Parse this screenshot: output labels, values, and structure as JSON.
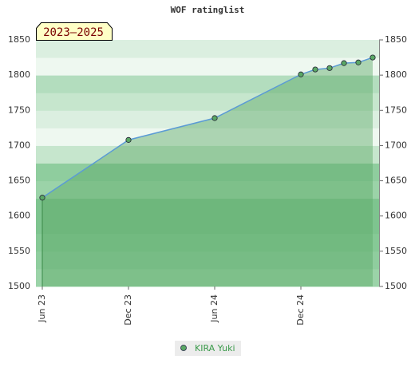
{
  "chart_data": {
    "type": "line",
    "title": "WOF ratinglist",
    "annotation": "2023–2025",
    "x": [
      "2023-06",
      "2023-12",
      "2024-06",
      "2024-12",
      "2025-01",
      "2025-02",
      "2025-03",
      "2025-04",
      "2025-05"
    ],
    "series": [
      {
        "name": "KIRA Yuki",
        "color": "#5aa865",
        "line_color": "#5b9bd5",
        "values": [
          1626,
          1708,
          1739,
          1801,
          1808,
          1810,
          1817,
          1818,
          1825
        ]
      }
    ],
    "xlim": [
      "2023-05",
      "2025-06"
    ],
    "xticks": [
      {
        "value": "2023-06",
        "label": "Jun 23"
      },
      {
        "value": "2023-12",
        "label": "Dec 23"
      },
      {
        "value": "2024-06",
        "label": "Jun 24"
      },
      {
        "value": "2024-12",
        "label": "Dec 24"
      }
    ],
    "ylim": [
      1500,
      1850
    ],
    "yticks": [
      1500,
      1550,
      1600,
      1650,
      1700,
      1750,
      1800,
      1850
    ],
    "area": true
  }
}
